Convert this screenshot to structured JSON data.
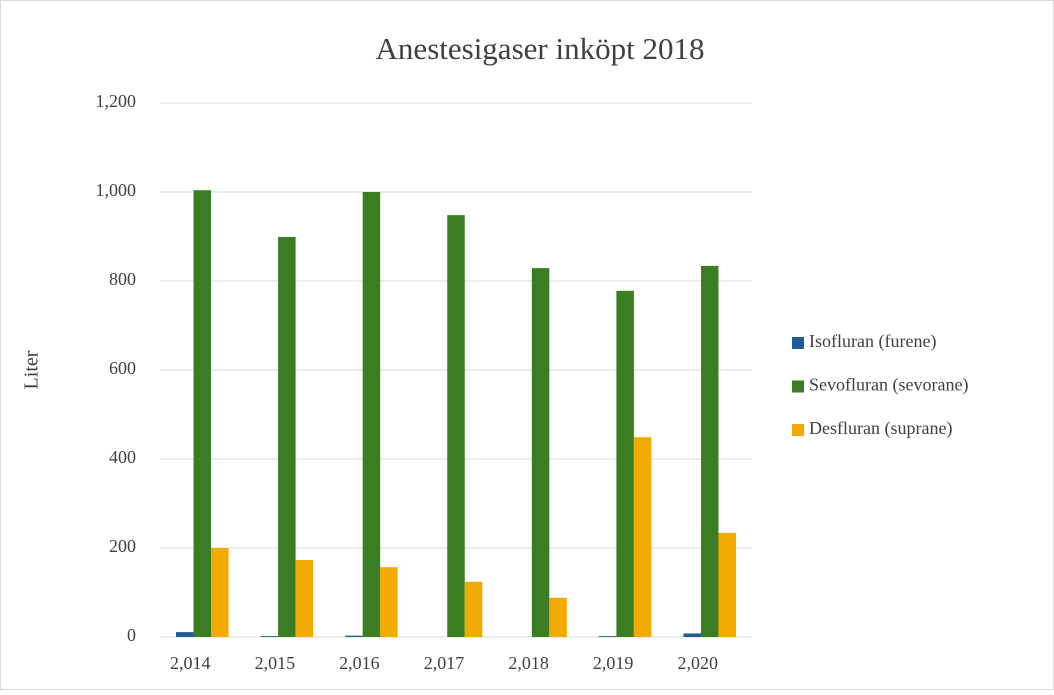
{
  "chart_data": {
    "type": "bar",
    "title": "Anestesigaser inköpt 2018",
    "y_label": "Liter",
    "categories": [
      "2,014",
      "2,015",
      "2,016",
      "2,017",
      "2,018",
      "2,019",
      "2,020"
    ],
    "series": [
      {
        "name": "Isofluran (furene)",
        "color": "#1f5c99",
        "values": [
          11,
          2,
          3,
          0,
          0,
          2,
          8
        ]
      },
      {
        "name": "Sevofluran (sevorane)",
        "color": "#3a7d22",
        "values": [
          1004,
          899,
          1000,
          948,
          829,
          778,
          834
        ]
      },
      {
        "name": "Desfluran (suprane)",
        "color": "#f2aa00",
        "values": [
          200,
          173,
          157,
          124,
          88,
          449,
          234
        ]
      }
    ],
    "ylim": [
      0,
      1200
    ],
    "yticks": [
      0,
      200,
      400,
      600,
      800,
      {
        "value": 1000,
        "label": "1,000"
      },
      {
        "value": 1200,
        "label": "1,200"
      }
    ],
    "grid": true,
    "legend": "right"
  }
}
